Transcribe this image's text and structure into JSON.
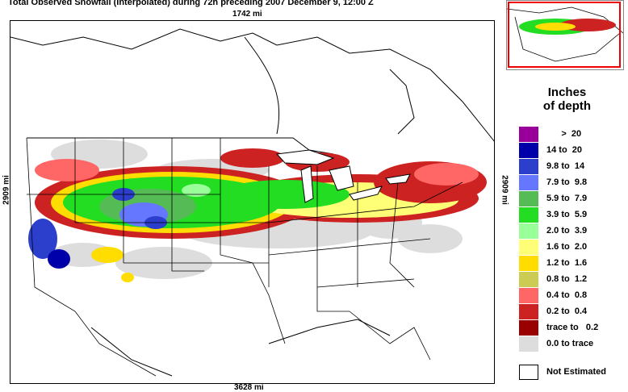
{
  "title": "Total Observed Snowfall (Interpolated) during 72h preceding 2007 December 9, 12:00 Z",
  "dimensions": {
    "top": "1742 mi",
    "bottom": "3628 mi",
    "left": "2909 mi",
    "right": "2909 mi"
  },
  "legend": {
    "title_line1": "Inches",
    "title_line2": "of depth",
    "items": [
      {
        "label": "      >  20",
        "color": "#990099"
      },
      {
        "label": "14 to  20",
        "color": "#0000aa"
      },
      {
        "label": "9.8 to  14",
        "color": "#2b3fcc"
      },
      {
        "label": "7.9 to  9.8",
        "color": "#6677ff"
      },
      {
        "label": "5.9 to  7.9",
        "color": "#55bb55"
      },
      {
        "label": "3.9 to  5.9",
        "color": "#22dd22"
      },
      {
        "label": "2.0 to  3.9",
        "color": "#99ff99"
      },
      {
        "label": "1.6 to  2.0",
        "color": "#ffff77"
      },
      {
        "label": "1.2 to  1.6",
        "color": "#ffdd00"
      },
      {
        "label": "0.8 to  1.2",
        "color": "#cccc55"
      },
      {
        "label": "0.4 to  0.8",
        "color": "#ff6666"
      },
      {
        "label": "0.2 to  0.4",
        "color": "#cc2222"
      },
      {
        "label": "trace to   0.2",
        "color": "#990000"
      },
      {
        "label": "0.0 to trace",
        "color": "#dddddd"
      }
    ],
    "not_estimated": "Not Estimated"
  }
}
